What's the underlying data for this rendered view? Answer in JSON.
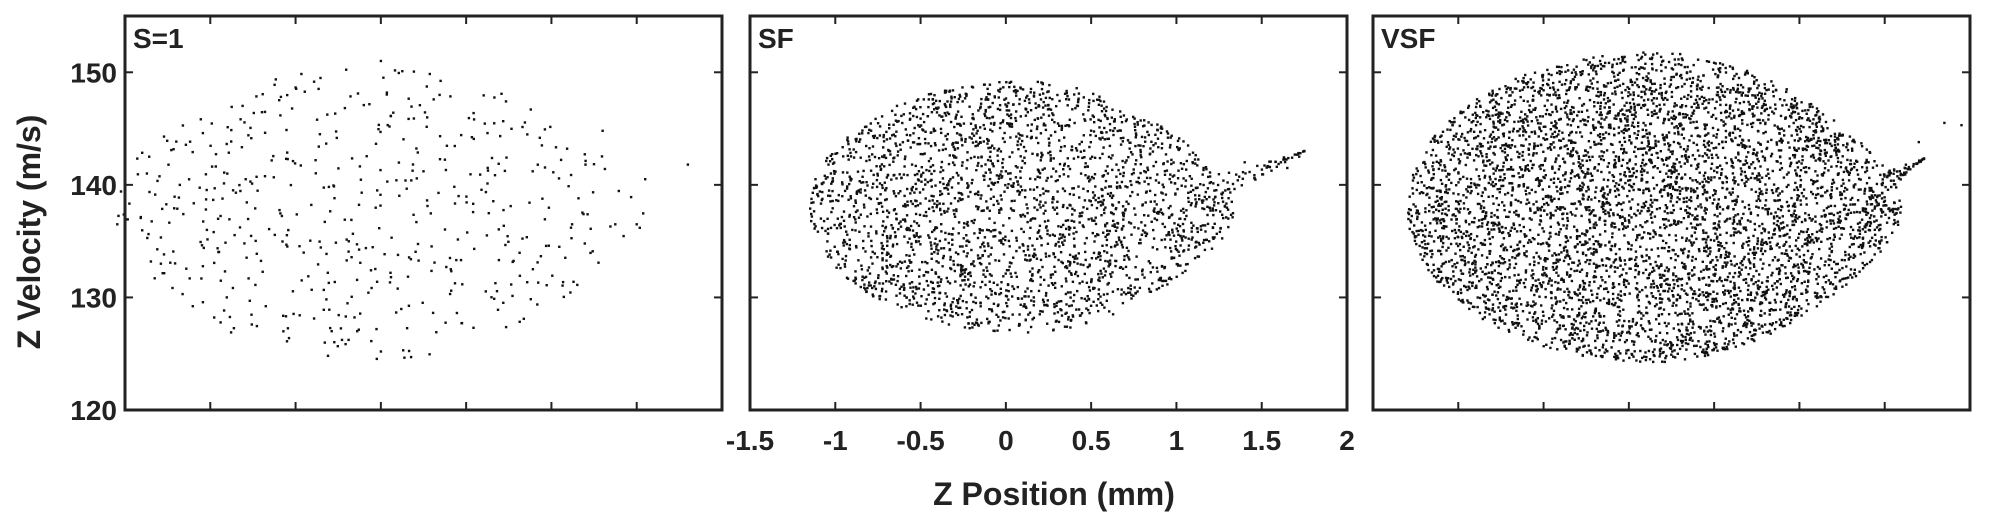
{
  "figure": {
    "xlabel": "Z Position (mm)",
    "ylabel": "Z Velocity (m/s)",
    "point_color": "#111111",
    "axis_color": "#222222"
  },
  "chart_data": [
    {
      "type": "scatter",
      "title": "S=1",
      "xlim": [
        -1.5,
        2
      ],
      "ylim": [
        120,
        155
      ],
      "xticks": [
        -1.5,
        -1,
        -0.5,
        0,
        0.5,
        1,
        1.5,
        2
      ],
      "yticks": [
        120,
        130,
        140,
        150
      ],
      "xticklabels_shown": false,
      "yticklabels_shown": true,
      "cluster": {
        "center": [
          0.0,
          137.5
        ],
        "x_half_width": 1.55,
        "y_half_height": 13.0,
        "n_points": 520
      },
      "points": [
        [
          -1.02,
          136.0
        ],
        [
          -0.98,
          135.8
        ],
        [
          -0.9,
          141.0
        ],
        [
          -0.85,
          139.3
        ],
        [
          -0.8,
          134.8
        ],
        [
          0.0,
          151.0
        ],
        [
          0.0,
          125.2
        ],
        [
          1.2,
          141.8
        ],
        [
          1.5,
          136.5
        ],
        [
          1.55,
          140.5
        ],
        [
          1.8,
          141.8
        ],
        [
          1.3,
          144.8
        ],
        [
          -0.55,
          126.1
        ]
      ]
    },
    {
      "type": "scatter",
      "title": "SF",
      "xlim": [
        -1.5,
        2
      ],
      "ylim": [
        120,
        155
      ],
      "xticks": [
        -1.5,
        -1,
        -0.5,
        0,
        0.5,
        1,
        1.5,
        2
      ],
      "xticklabels": [
        "-1.5",
        "-1",
        "-0.5",
        "0",
        "0.5",
        "1",
        "1.5",
        "2"
      ],
      "yticks": [
        120,
        130,
        140,
        150
      ],
      "xticklabels_shown": true,
      "yticklabels_shown": false,
      "cluster": {
        "center": [
          0.1,
          138.0
        ],
        "x_half_width": 1.25,
        "y_half_height": 11.2,
        "n_points": 2600,
        "tail_to": [
          1.75,
          143.0
        ]
      },
      "points": [
        [
          1.65,
          141.5
        ],
        [
          1.72,
          142.5
        ],
        [
          1.75,
          143.0
        ],
        [
          1.4,
          142.0
        ],
        [
          -1.1,
          139.0
        ]
      ]
    },
    {
      "type": "scatter",
      "title": "VSF",
      "xlim": [
        -1.5,
        2
      ],
      "ylim": [
        120,
        155
      ],
      "xticks": [
        -1.5,
        -1,
        -0.5,
        0,
        0.5,
        1,
        1.5,
        2
      ],
      "yticks": [
        120,
        130,
        140,
        150
      ],
      "xticklabels_shown": false,
      "yticklabels_shown": false,
      "cluster": {
        "center": [
          0.15,
          138.0
        ],
        "x_half_width": 1.45,
        "y_half_height": 13.8,
        "n_points": 5200,
        "tail_to": [
          1.75,
          142.5
        ]
      },
      "points": [
        [
          1.85,
          145.5
        ],
        [
          1.95,
          145.3
        ],
        [
          1.7,
          143.8
        ],
        [
          1.73,
          142.3
        ],
        [
          -1.12,
          137.0
        ]
      ]
    }
  ]
}
